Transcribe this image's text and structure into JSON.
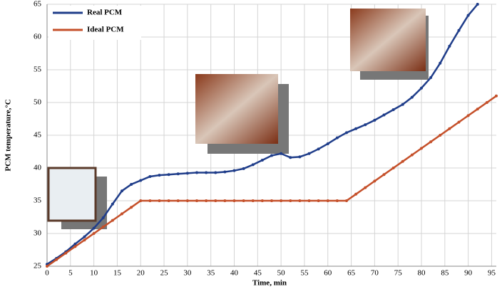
{
  "chart_data": {
    "type": "line",
    "x_label": "Time, min",
    "y_label": "PCM temperature,°C",
    "xlim": [
      0,
      96
    ],
    "ylim": [
      25,
      65
    ],
    "xticks": [
      0,
      5,
      10,
      15,
      20,
      25,
      30,
      35,
      40,
      45,
      50,
      55,
      60,
      65,
      70,
      75,
      80,
      85,
      90,
      95
    ],
    "yticks": [
      25,
      30,
      35,
      40,
      45,
      50,
      55,
      60,
      65
    ],
    "grid": true,
    "legend": "upper left",
    "series": [
      {
        "name": "Real PCM",
        "color": "#1f3d8a",
        "x": [
          0,
          2,
          4,
          6,
          8,
          10,
          12,
          14,
          16,
          18,
          20,
          22,
          24,
          26,
          28,
          30,
          32,
          34,
          36,
          38,
          40,
          42,
          44,
          46,
          48,
          50,
          52,
          54,
          56,
          58,
          60,
          62,
          64,
          66,
          68,
          70,
          72,
          74,
          76,
          78,
          80,
          82,
          84,
          86,
          88,
          90,
          92
        ],
        "values": [
          25.3,
          26.2,
          27.2,
          28.4,
          29.5,
          30.8,
          32.4,
          34.5,
          36.5,
          37.5,
          38.1,
          38.7,
          38.9,
          39.0,
          39.1,
          39.2,
          39.3,
          39.3,
          39.3,
          39.4,
          39.6,
          39.9,
          40.5,
          41.2,
          41.9,
          42.2,
          41.6,
          41.7,
          42.2,
          42.9,
          43.7,
          44.6,
          45.4,
          46.0,
          46.6,
          47.3,
          48.1,
          48.9,
          49.7,
          50.8,
          52.2,
          53.8,
          56.0,
          58.6,
          61.0,
          63.3,
          65.0
        ]
      },
      {
        "name": "Ideal PCM",
        "color": "#c5502a",
        "x": [
          0,
          2,
          4,
          6,
          8,
          10,
          12,
          14,
          16,
          18,
          20,
          22,
          24,
          26,
          28,
          30,
          32,
          34,
          36,
          38,
          40,
          42,
          44,
          46,
          48,
          50,
          52,
          54,
          56,
          58,
          60,
          62,
          64,
          66,
          68,
          70,
          72,
          74,
          76,
          78,
          80,
          82,
          84,
          86,
          88,
          90,
          92,
          94,
          96
        ],
        "values": [
          25,
          26,
          27,
          28,
          29,
          30,
          31,
          32,
          33,
          34,
          35,
          35,
          35,
          35,
          35,
          35,
          35,
          35,
          35,
          35,
          35,
          35,
          35,
          35,
          35,
          35,
          35,
          35,
          35,
          35,
          35,
          35,
          35,
          36,
          37,
          38,
          39,
          40,
          41,
          42,
          43,
          44,
          45,
          46,
          47,
          48,
          49,
          50,
          51
        ]
      }
    ]
  }
}
